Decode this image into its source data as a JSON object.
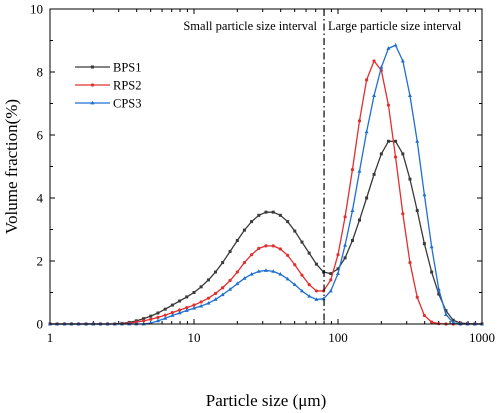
{
  "chart_data": {
    "type": "line",
    "xlabel": "Particle size (μm)",
    "ylabel": "Volume fraction(%)",
    "xscale": "log",
    "xlim": [
      1,
      1000
    ],
    "ylim": [
      0,
      10
    ],
    "xticks": [
      1,
      10,
      100,
      1000
    ],
    "xtick_labels": [
      "1",
      "10",
      "100",
      "1000"
    ],
    "yticks": [
      0,
      2,
      4,
      6,
      8,
      10
    ],
    "ytick_labels": [
      "0",
      "2",
      "4",
      "6",
      "8",
      "10"
    ],
    "legend_position": "upper-left",
    "grid": false,
    "divider_x": 80,
    "annotations": {
      "left": "Small particle size interval",
      "right": "Large particle size interval"
    },
    "x": [
      1,
      1.12,
      1.26,
      1.41,
      1.58,
      1.78,
      2,
      2.24,
      2.51,
      2.82,
      3.16,
      3.55,
      3.98,
      4.47,
      5.01,
      5.62,
      6.31,
      7.08,
      7.94,
      8.91,
      10,
      11.2,
      12.6,
      14.1,
      15.8,
      17.8,
      20,
      22.4,
      25.1,
      28.2,
      31.6,
      35.5,
      39.8,
      44.7,
      50.1,
      56.2,
      63.1,
      70.8,
      79.4,
      89.1,
      100,
      112,
      126,
      141,
      158,
      178,
      200,
      224,
      251,
      282,
      316,
      355,
      398,
      447,
      501,
      562,
      631,
      708,
      794,
      891,
      1000
    ],
    "series": [
      {
        "name": "BPS1",
        "color": "#3a3a3a",
        "values": [
          0,
          0,
          0,
          0,
          0,
          0,
          0,
          0,
          0,
          0,
          0.02,
          0.05,
          0.1,
          0.17,
          0.25,
          0.35,
          0.47,
          0.6,
          0.73,
          0.86,
          1.0,
          1.18,
          1.4,
          1.65,
          1.95,
          2.3,
          2.65,
          2.98,
          3.25,
          3.45,
          3.55,
          3.55,
          3.45,
          3.25,
          2.95,
          2.6,
          2.25,
          1.9,
          1.65,
          1.6,
          1.75,
          2.1,
          2.65,
          3.3,
          4.0,
          4.75,
          5.4,
          5.8,
          5.8,
          5.4,
          4.6,
          3.6,
          2.55,
          1.65,
          0.95,
          0.42,
          0.12,
          0.03,
          0.01,
          0,
          0
        ]
      },
      {
        "name": "RPS2",
        "color": "#e03030",
        "values": [
          0,
          0,
          0,
          0,
          0,
          0,
          0,
          0,
          0,
          0,
          0.01,
          0.03,
          0.06,
          0.1,
          0.15,
          0.21,
          0.28,
          0.36,
          0.44,
          0.52,
          0.6,
          0.7,
          0.82,
          0.97,
          1.15,
          1.38,
          1.65,
          1.95,
          2.2,
          2.4,
          2.48,
          2.48,
          2.38,
          2.18,
          1.88,
          1.55,
          1.25,
          1.05,
          1.05,
          1.4,
          2.2,
          3.4,
          4.9,
          6.45,
          7.75,
          8.35,
          8.05,
          6.95,
          5.3,
          3.5,
          1.95,
          0.85,
          0.27,
          0.06,
          0.01,
          0,
          0,
          0,
          0,
          0,
          0
        ]
      },
      {
        "name": "CPS3",
        "color": "#1f6fd0",
        "values": [
          0,
          0,
          0,
          0,
          0,
          0,
          0,
          0,
          0,
          0,
          0,
          0,
          0,
          0,
          0.03,
          0.1,
          0.18,
          0.27,
          0.35,
          0.43,
          0.5,
          0.57,
          0.66,
          0.78,
          0.93,
          1.1,
          1.28,
          1.45,
          1.58,
          1.67,
          1.7,
          1.67,
          1.58,
          1.43,
          1.25,
          1.05,
          0.88,
          0.78,
          0.8,
          1.05,
          1.6,
          2.5,
          3.6,
          4.85,
          6.1,
          7.25,
          8.15,
          8.75,
          8.85,
          8.35,
          7.25,
          5.8,
          4.1,
          2.45,
          1.1,
          0.3,
          0.04,
          0,
          0,
          0,
          0
        ]
      }
    ]
  }
}
